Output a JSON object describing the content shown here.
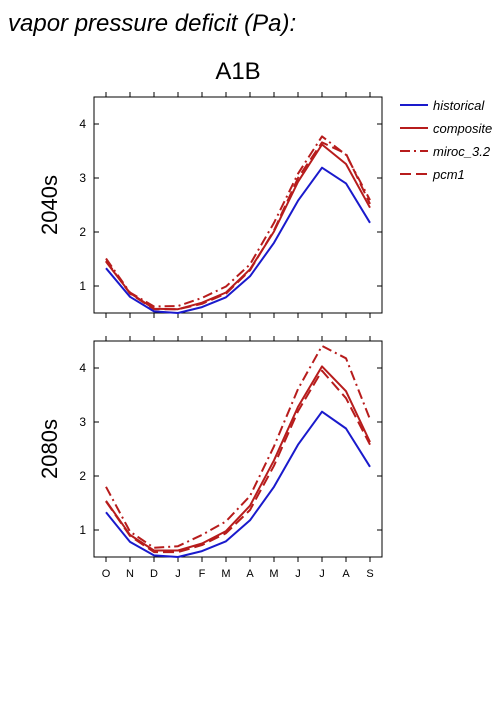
{
  "page_title": "vapor pressure deficit (Pa):",
  "scenario": "A1B",
  "legend": [
    {
      "name": "historical",
      "color": "#1a1acc",
      "dash": "solid"
    },
    {
      "name": "composite",
      "color": "#b71c1c",
      "dash": "solid"
    },
    {
      "name": "miroc_3.2",
      "color": "#b71c1c",
      "dash": "dashdot"
    },
    {
      "name": "pcm1",
      "color": "#b71c1c",
      "dash": "dash"
    }
  ],
  "chart_data": [
    {
      "type": "line",
      "row_label": "2040s",
      "categories": [
        "O",
        "N",
        "D",
        "J",
        "F",
        "M",
        "A",
        "M",
        "J",
        "J",
        "A",
        "S"
      ],
      "ylim": [
        0.5,
        4.5
      ],
      "yticks": [
        1,
        2,
        3,
        4
      ],
      "series": [
        {
          "name": "historical",
          "values": [
            1.33,
            0.8,
            0.53,
            0.5,
            0.61,
            0.79,
            1.18,
            1.8,
            2.58,
            3.19,
            2.9,
            2.17
          ]
        },
        {
          "name": "composite",
          "values": [
            1.45,
            0.87,
            0.58,
            0.57,
            0.69,
            0.88,
            1.31,
            2.01,
            2.93,
            3.62,
            3.26,
            2.45
          ]
        },
        {
          "name": "miroc_3.2",
          "values": [
            1.51,
            0.88,
            0.62,
            0.63,
            0.78,
            0.99,
            1.4,
            2.17,
            3.08,
            3.77,
            3.43,
            2.59
          ]
        },
        {
          "name": "pcm1",
          "values": [
            1.47,
            0.86,
            0.57,
            0.57,
            0.67,
            0.86,
            1.29,
            2.03,
            3.0,
            3.66,
            3.45,
            2.52
          ]
        }
      ]
    },
    {
      "type": "line",
      "row_label": "2080s",
      "categories": [
        "O",
        "N",
        "D",
        "J",
        "F",
        "M",
        "A",
        "M",
        "J",
        "J",
        "A",
        "S"
      ],
      "ylim": [
        0.5,
        4.5
      ],
      "yticks": [
        1,
        2,
        3,
        4
      ],
      "series": [
        {
          "name": "historical",
          "values": [
            1.33,
            0.78,
            0.53,
            0.5,
            0.61,
            0.79,
            1.18,
            1.8,
            2.58,
            3.19,
            2.88,
            2.17
          ]
        },
        {
          "name": "composite",
          "values": [
            1.54,
            0.91,
            0.62,
            0.62,
            0.75,
            0.98,
            1.45,
            2.29,
            3.28,
            4.03,
            3.57,
            2.63
          ]
        },
        {
          "name": "miroc_3.2",
          "values": [
            1.8,
            0.97,
            0.67,
            0.7,
            0.91,
            1.16,
            1.63,
            2.55,
            3.61,
            4.41,
            4.18,
            3.05
          ]
        },
        {
          "name": "pcm1",
          "values": [
            1.53,
            0.89,
            0.59,
            0.59,
            0.72,
            0.94,
            1.37,
            2.19,
            3.2,
            3.95,
            3.44,
            2.58
          ]
        }
      ]
    }
  ]
}
